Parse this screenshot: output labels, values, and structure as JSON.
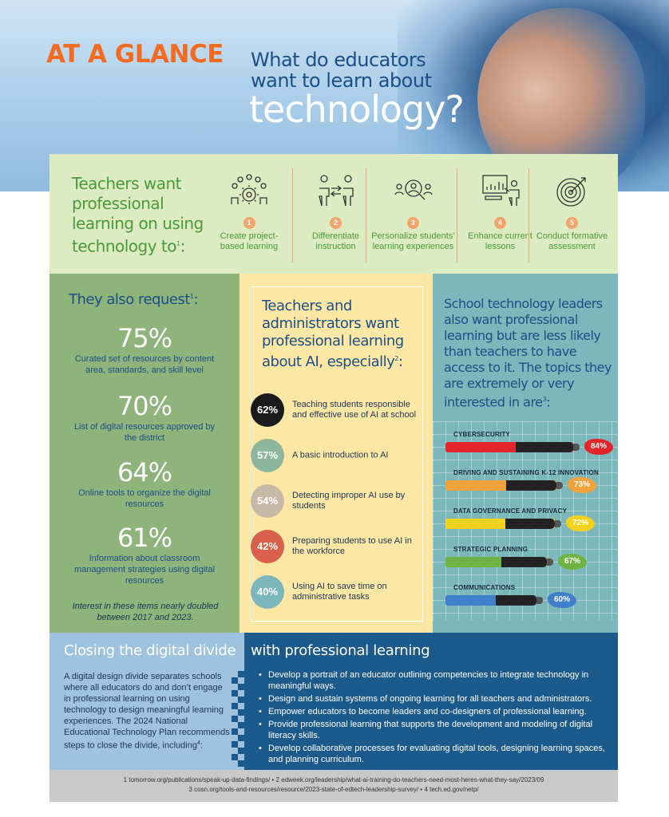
{
  "header": {
    "at_a_glance": "AT A GLANCE",
    "question_line1": "What do educators",
    "question_line2": "want to learn about",
    "question_big": "technology?"
  },
  "top": {
    "lead": "Teachers want professional learning on using technology to",
    "lead_sup": "1",
    "lead_end": ":",
    "items": [
      {
        "num": "1",
        "label": "Create project-based learning",
        "icon": "team-gear-icon"
      },
      {
        "num": "2",
        "label": "Differentiate instruction",
        "icon": "people-arrows-icon"
      },
      {
        "num": "3",
        "label": "Personalize students’ learning experiences",
        "icon": "magnifier-people-icon"
      },
      {
        "num": "4",
        "label": "Enhance current lessons",
        "icon": "presentation-board-icon"
      },
      {
        "num": "5",
        "label": "Conduct formative assessment",
        "icon": "target-icon"
      }
    ]
  },
  "requests": {
    "title": "They also request",
    "title_sup": "1",
    "title_end": ":",
    "items": [
      {
        "pct": "75%",
        "label": "Curated set of resources by content area, standards, and skill level"
      },
      {
        "pct": "70%",
        "label": "List of digital resources approved by the district"
      },
      {
        "pct": "64%",
        "label": "Online tools to organize the digital resources"
      },
      {
        "pct": "61%",
        "label": "Information about classroom management strategies using digital resources"
      }
    ],
    "note": "Interest in these items nearly doubled between 2017 and 2023."
  },
  "ai": {
    "title": "Teachers and administrators want professional learning about AI, especially",
    "title_sup": "2",
    "title_end": ":",
    "items": [
      {
        "pct": "62%",
        "label": "Teaching students responsible and effective use of AI at school",
        "color": "#1a1a1a"
      },
      {
        "pct": "57%",
        "label": "A basic introduction to AI",
        "color": "#8db79c"
      },
      {
        "pct": "54%",
        "label": "Detecting improper AI use by students",
        "color": "#c7b9a6"
      },
      {
        "pct": "42%",
        "label": "Preparing students to use AI in the workforce",
        "color": "#d9604b"
      },
      {
        "pct": "40%",
        "label": "Using AI to save time on administrative tasks",
        "color": "#7bb7bb"
      }
    ]
  },
  "leaders": {
    "title": "School technology leaders also want professional learning but are less likely than teachers to have access to it. The topics they are extremely or very interested in are",
    "title_sup": "3",
    "title_end": ":",
    "topics": [
      {
        "label": "CYBERSECURITY",
        "value": 84,
        "pct": "84%",
        "color": "#e2262b"
      },
      {
        "label": "DRIVING AND SUSTAINING K-12 INNOVATION",
        "value": 73,
        "pct": "73%",
        "color": "#f2a23a"
      },
      {
        "label": "DATA GOVERNANCE AND PRIVACY",
        "value": 72,
        "pct": "72%",
        "color": "#f3d21c"
      },
      {
        "label": "STRATEGIC PLANNING",
        "value": 67,
        "pct": "67%",
        "color": "#6fb443"
      },
      {
        "label": "COMMUNICATIONS",
        "value": 60,
        "pct": "60%",
        "color": "#3f7fcc"
      }
    ]
  },
  "divide": {
    "title_left": "Closing the digital divide",
    "title_right": "with professional learning",
    "body": "A digital design divide separates schools where all educators do and don’t engage in professional learning on using technology to design meaningful learning experiences. The 2024 National Educational Technology Plan recommends steps to close the divide, including",
    "body_sup": "4",
    "body_end": ":",
    "bullets": [
      "Develop a portrait of an educator outlining competencies to integrate technology in meaningful ways.",
      "Design and sustain systems of ongoing learning for all teachers and administrators.",
      "Empower educators to become leaders and co-designers of professional learning.",
      "Provide professional learning that supports the development and modeling of digital literacy skills.",
      "Develop collaborative processes for evaluating digital tools, designing learning spaces, and planning curriculum."
    ]
  },
  "footer": {
    "line1": "1 tomorrow.org/publications/speak-up-data-findings/ • 2 edweek.org/leadership/what-ai-training-do-teachers-need-most-heres-what-they-say/2023/09",
    "line2": "3 cosn.org/tools-and-resources/resource/2023-state-of-edtech-leadership-survey/ • 4 tech.ed.gov/netp/"
  }
}
